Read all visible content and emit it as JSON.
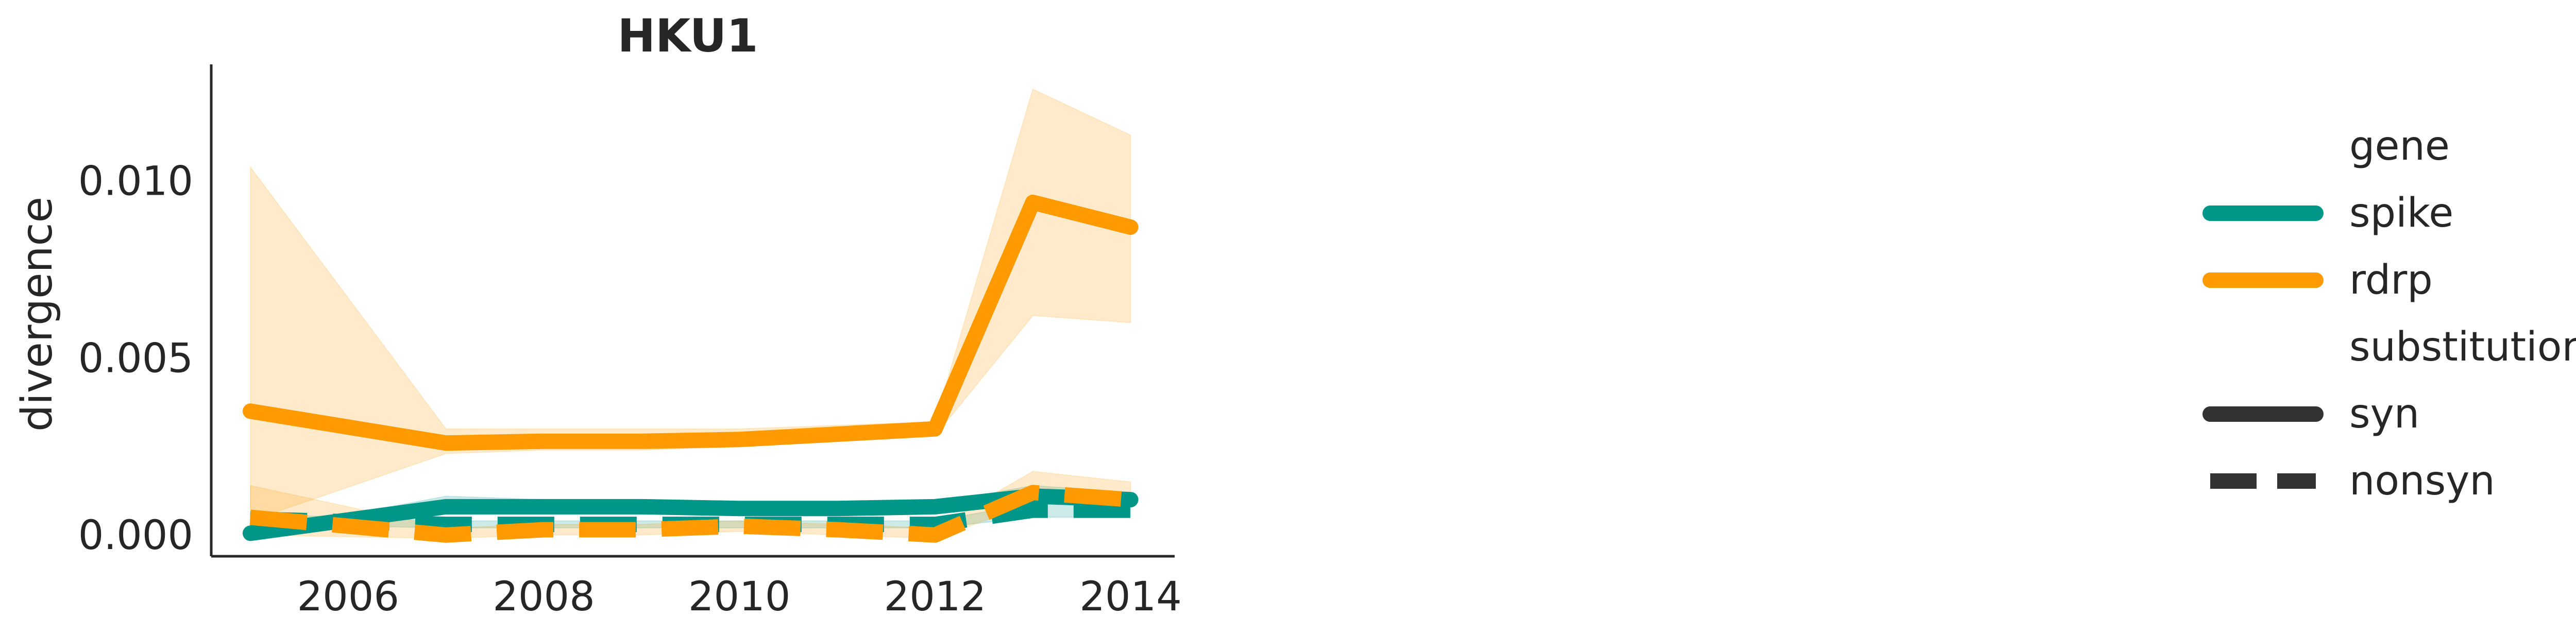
{
  "chart_data": {
    "type": "line",
    "title": "HKU1",
    "xlabel": "",
    "ylabel": "divergence",
    "xlim": [
      2004.6,
      2014.45
    ],
    "ylim": [
      -0.0006,
      0.0133
    ],
    "xticks": [
      2006,
      2008,
      2010,
      2012,
      2014
    ],
    "yticks": [
      0.0,
      0.005,
      0.01
    ],
    "ytick_labels": [
      "0.000",
      "0.005",
      "0.010"
    ],
    "x": [
      2005,
      2007,
      2008,
      2009,
      2010,
      2011,
      2012,
      2013,
      2014
    ],
    "series": [
      {
        "name": "spike syn",
        "gene": "spike",
        "substitution": "syn",
        "color": "#009688",
        "dash": "solid",
        "values": [
          5e-05,
          0.0008,
          0.0008,
          0.0008,
          0.00075,
          0.00075,
          0.0008,
          0.0011,
          0.001
        ],
        "ci_low": [
          5e-05,
          0.0007,
          0.0007,
          0.0007,
          0.0007,
          0.0007,
          0.00075,
          0.0009,
          0.0009
        ],
        "ci_high": [
          5e-05,
          0.0011,
          0.001,
          0.001,
          0.0009,
          0.0009,
          0.0009,
          0.0014,
          0.0012
        ]
      },
      {
        "name": "spike nonsyn",
        "gene": "spike",
        "substitution": "nonsyn",
        "color": "#009688",
        "dash": "dashed",
        "values": [
          0.00045,
          0.0003,
          0.0003,
          0.0003,
          0.0003,
          0.0003,
          0.0003,
          0.0007,
          0.0007
        ],
        "ci_low": [
          0.0003,
          0.0002,
          0.0002,
          0.0002,
          0.0002,
          0.0002,
          0.0002,
          0.0005,
          0.0005
        ],
        "ci_high": [
          0.0006,
          0.0004,
          0.0004,
          0.0004,
          0.0004,
          0.0004,
          0.0004,
          0.0009,
          0.0009
        ]
      },
      {
        "name": "rdrp syn",
        "gene": "rdrp",
        "substitution": "syn",
        "color": "#ff9b00",
        "dash": "solid",
        "values": [
          0.0035,
          0.0026,
          0.00265,
          0.00265,
          0.0027,
          0.00285,
          0.003,
          0.0094,
          0.0087
        ],
        "ci_low": [
          0.0004,
          0.0023,
          0.0024,
          0.0024,
          0.0025,
          0.0027,
          0.0028,
          0.0062,
          0.006
        ],
        "ci_high": [
          0.0104,
          0.003,
          0.003,
          0.003,
          0.003,
          0.0031,
          0.0032,
          0.0126,
          0.0113
        ]
      },
      {
        "name": "rdrp nonsyn",
        "gene": "rdrp",
        "substitution": "nonsyn",
        "color": "#ff9b00",
        "dash": "dashed",
        "values": [
          0.0005,
          0.0,
          0.00015,
          0.00015,
          0.00025,
          0.00015,
          0.0,
          0.0012,
          0.001
        ],
        "ci_low": [
          0.0,
          -0.0001,
          0.0,
          0.0,
          0.0001,
          0.0,
          -0.0001,
          0.0009,
          0.0008
        ],
        "ci_high": [
          0.0014,
          0.0002,
          0.0003,
          0.0003,
          0.0004,
          0.0003,
          0.0002,
          0.0018,
          0.0015
        ]
      }
    ],
    "legend": {
      "placement": "right",
      "gene_title": "gene",
      "gene_items": [
        {
          "label": "spike",
          "color": "#009688"
        },
        {
          "label": "rdrp",
          "color": "#ff9b00"
        }
      ],
      "substitution_title": "substitution",
      "substitution_items": [
        {
          "label": "syn",
          "dash": "solid"
        },
        {
          "label": "nonsyn",
          "dash": "dashed"
        }
      ],
      "neutral_color": "#333333"
    },
    "grid": false
  }
}
